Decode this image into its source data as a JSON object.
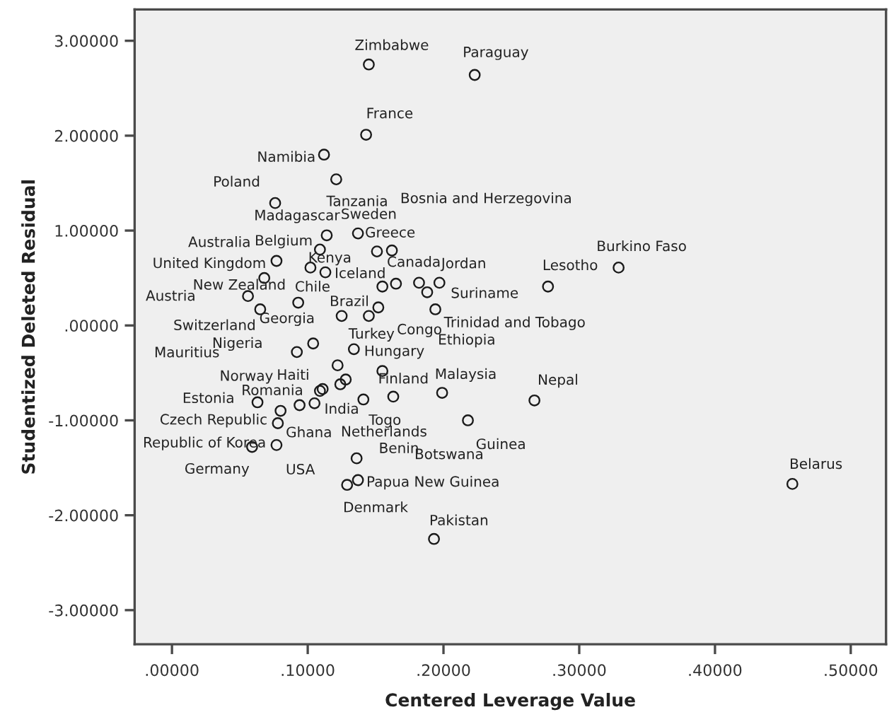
{
  "chart_data": {
    "type": "scatter",
    "xlabel": "Centered Leverage Value",
    "ylabel": "Studentized Deleted Residual",
    "marker": "circle",
    "xlim": [
      -0.0275,
      0.526
    ],
    "ylim": [
      -3.36,
      3.33
    ],
    "xticks": [
      {
        "value": 0,
        "label": ".00000"
      },
      {
        "value": 0.1,
        "label": ".10000"
      },
      {
        "value": 0.2,
        "label": ".20000"
      },
      {
        "value": 0.3,
        "label": ".30000"
      },
      {
        "value": 0.4,
        "label": ".40000"
      },
      {
        "value": 0.5,
        "label": ".50000"
      }
    ],
    "yticks": [
      {
        "value": -3,
        "label": "-3.00000"
      },
      {
        "value": -2,
        "label": "-2.00000"
      },
      {
        "value": -1,
        "label": "-1.00000"
      },
      {
        "value": 0,
        "label": ".00000"
      },
      {
        "value": 1,
        "label": "1.00000"
      },
      {
        "value": 2,
        "label": "2.00000"
      },
      {
        "value": 3,
        "label": "3.00000"
      }
    ],
    "series": [
      {
        "color": "#1a1a1a",
        "x": [
          0.145,
          0.223,
          0.143,
          0.112,
          0.121,
          0.076,
          0.114,
          0.137,
          0.109,
          0.151,
          0.162,
          0.077,
          0.102,
          0.113,
          0.068,
          0.155,
          0.165,
          0.182,
          0.188,
          0.197,
          0.056,
          0.093,
          0.065,
          0.125,
          0.145,
          0.152,
          0.194,
          0.092,
          0.104,
          0.134,
          0.122,
          0.155,
          0.128,
          0.124,
          0.109,
          0.111,
          0.199,
          0.163,
          0.141,
          0.063,
          0.094,
          0.105,
          0.08,
          0.078,
          0.218,
          0.059,
          0.077,
          0.136,
          0.129,
          0.137,
          0.193,
          0.329,
          0.277,
          0.267,
          0.457
        ],
        "values": [
          2.75,
          2.64,
          2.01,
          1.8,
          1.54,
          1.29,
          0.95,
          0.97,
          0.8,
          0.78,
          0.79,
          0.68,
          0.61,
          0.56,
          0.5,
          0.41,
          0.44,
          0.45,
          0.35,
          0.45,
          0.31,
          0.24,
          0.17,
          0.1,
          0.1,
          0.19,
          0.17,
          -0.28,
          -0.19,
          -0.25,
          -0.42,
          -0.48,
          -0.57,
          -0.62,
          -0.69,
          -0.67,
          -0.71,
          -0.75,
          -0.78,
          -0.81,
          -0.84,
          -0.82,
          -0.9,
          -1.03,
          -1.0,
          -1.28,
          -1.26,
          -1.4,
          -1.68,
          -1.63,
          -2.25,
          0.61,
          0.41,
          -0.79,
          -1.67
        ]
      }
    ],
    "annotations": [
      {
        "text": "Zimbabwe",
        "x": 0.145,
        "y": 2.75
      },
      {
        "text": "Paraguay",
        "x": 0.223,
        "y": 2.64
      },
      {
        "text": "France",
        "x": 0.143,
        "y": 2.01
      },
      {
        "text": "Namibia",
        "x": 0.112,
        "y": 1.8
      },
      {
        "text": "Poland",
        "x": 0.076,
        "y": 1.29
      },
      {
        "text": "Tanzania",
        "x": 0.121,
        "y": 1.54
      },
      "Bosnia and Herzegovina",
      {
        "text": "Madagascar",
        "x": 0.114,
        "y": 0.95
      },
      {
        "text": "Sweden",
        "x": 0.137,
        "y": 0.97
      },
      "Australia",
      {
        "text": "Belgium",
        "x": 0.109,
        "y": 0.8
      },
      {
        "text": "Greece",
        "x": 0.162,
        "y": 0.79
      },
      {
        "text": "United Kingdom",
        "x": 0.077,
        "y": 0.68
      },
      {
        "text": "Kenya",
        "x": 0.151,
        "y": 0.78
      },
      {
        "text": "Iceland",
        "x": 0.113,
        "y": 0.56
      },
      {
        "text": "Canada",
        "x": 0.155,
        "y": 0.41
      },
      {
        "text": "Jordan",
        "x": 0.182,
        "y": 0.45
      },
      {
        "text": "New Zealand",
        "x": 0.068,
        "y": 0.5
      },
      {
        "text": "Chile",
        "x": 0.093,
        "y": 0.24
      },
      {
        "text": "Suriname",
        "x": 0.188,
        "y": 0.35
      },
      "Austria",
      {
        "text": "Brazil",
        "x": 0.152,
        "y": 0.19
      },
      {
        "text": "Trinidad and Tobago",
        "x": 0.197,
        "y": 0.45
      },
      {
        "text": "Switzerland",
        "x": 0.056,
        "y": 0.31
      },
      {
        "text": "Georgia",
        "x": 0.125,
        "y": 0.1
      },
      {
        "text": "Congo",
        "x": 0.145,
        "y": 0.1
      },
      {
        "text": "Ethiopia",
        "x": 0.194,
        "y": 0.17
      },
      {
        "text": "Nigeria",
        "x": 0.065,
        "y": 0.17
      },
      {
        "text": "Turkey",
        "x": 0.134,
        "y": -0.25
      },
      "Mauritius",
      {
        "text": "Hungary",
        "x": 0.155,
        "y": -0.48
      },
      {
        "text": "Norway",
        "x": 0.092,
        "y": -0.28
      },
      {
        "text": "Haiti",
        "x": 0.122,
        "y": -0.42
      },
      {
        "text": "Romania",
        "x": 0.109,
        "y": -0.69
      },
      {
        "text": "Finland",
        "x": 0.163,
        "y": -0.75
      },
      {
        "text": "Malaysia",
        "x": 0.199,
        "y": -0.71
      },
      {
        "text": "Estonia",
        "x": 0.063,
        "y": -0.81
      },
      {
        "text": "India",
        "x": 0.105,
        "y": -0.82
      },
      {
        "text": "Togo",
        "x": 0.141,
        "y": -0.78
      },
      {
        "text": "Czech Republic",
        "x": 0.08,
        "y": -0.9
      },
      {
        "text": "Ghana",
        "x": 0.094,
        "y": -0.84
      },
      "Netherlands",
      {
        "text": "Republic of Korea",
        "x": 0.078,
        "y": -1.03
      },
      {
        "text": "Guinea",
        "x": 0.218,
        "y": -1.0
      },
      {
        "text": "Germany",
        "x": 0.059,
        "y": -1.28
      },
      {
        "text": "USA",
        "x": 0.077,
        "y": -1.26
      },
      {
        "text": "Benin",
        "x": 0.136,
        "y": -1.4
      },
      "Botswana",
      {
        "text": "Papua New Guinea",
        "x": 0.137,
        "y": -1.63
      },
      {
        "text": "Denmark",
        "x": 0.129,
        "y": -1.68
      },
      {
        "text": "Pakistan",
        "x": 0.193,
        "y": -2.25
      },
      {
        "text": "Burkino Faso",
        "x": 0.329,
        "y": 0.61
      },
      {
        "text": "Lesotho",
        "x": 0.277,
        "y": 0.41
      },
      {
        "text": "Nepal",
        "x": 0.267,
        "y": -0.79
      },
      {
        "text": "Belarus",
        "x": 0.457,
        "y": -1.67
      }
    ]
  }
}
